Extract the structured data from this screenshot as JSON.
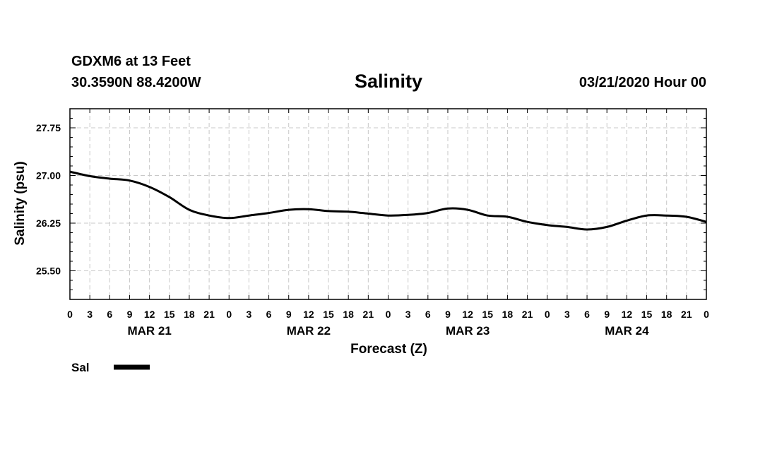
{
  "header": {
    "station": "GDXM6 at 13 Feet",
    "coords": "30.3590N 88.4200W",
    "run": "03/21/2020 Hour 00"
  },
  "chart_data": {
    "type": "line",
    "title": "Salinity",
    "xlabel": "Forecast (Z)",
    "ylabel": "Salinity (psu)",
    "xlim": [
      0,
      96
    ],
    "ylim": [
      25.05,
      28.05
    ],
    "y_ticks": [
      25.5,
      26.25,
      27.0,
      27.75
    ],
    "y_tick_labels": [
      "25.50",
      "26.25",
      "27.00",
      "27.75"
    ],
    "y_minor_step": 0.15,
    "x_ticks": [
      0,
      3,
      6,
      9,
      12,
      15,
      18,
      21,
      24,
      27,
      30,
      33,
      36,
      39,
      42,
      45,
      48,
      51,
      54,
      57,
      60,
      63,
      66,
      69,
      72,
      75,
      78,
      81,
      84,
      87,
      90,
      93,
      96
    ],
    "x_tick_labels": [
      "0",
      "3",
      "6",
      "9",
      "12",
      "15",
      "18",
      "21",
      "0",
      "3",
      "6",
      "9",
      "12",
      "15",
      "18",
      "21",
      "0",
      "3",
      "6",
      "9",
      "12",
      "15",
      "18",
      "21",
      "0",
      "3",
      "6",
      "9",
      "12",
      "15",
      "18",
      "21",
      "0"
    ],
    "day_labels": [
      {
        "label": "MAR 21",
        "x": 12
      },
      {
        "label": "MAR 22",
        "x": 36
      },
      {
        "label": "MAR 23",
        "x": 60
      },
      {
        "label": "MAR 24",
        "x": 84
      }
    ],
    "grid": true,
    "legend_position": "bottom-left",
    "series": [
      {
        "name": "Sal",
        "color": "#000000",
        "x": [
          0,
          3,
          6,
          9,
          12,
          15,
          18,
          21,
          24,
          27,
          30,
          33,
          36,
          39,
          42,
          45,
          48,
          51,
          54,
          57,
          60,
          63,
          66,
          69,
          72,
          75,
          78,
          81,
          84,
          87,
          90,
          93,
          96
        ],
        "values": [
          27.06,
          26.99,
          26.95,
          26.92,
          26.82,
          26.66,
          26.46,
          26.37,
          26.33,
          26.37,
          26.41,
          26.46,
          26.47,
          26.44,
          26.43,
          26.4,
          26.37,
          26.38,
          26.41,
          26.48,
          26.46,
          26.37,
          26.35,
          26.27,
          26.22,
          26.19,
          26.15,
          26.19,
          26.29,
          26.37,
          26.37,
          26.35,
          26.27
        ]
      }
    ]
  }
}
